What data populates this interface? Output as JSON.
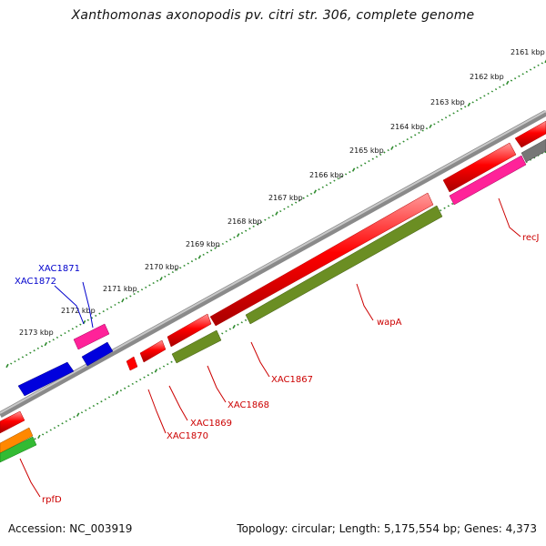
{
  "title": "Xanthomonas axonopodis pv. citri str. 306, complete genome",
  "accession": "Accession: NC_003919",
  "stats": "Topology: circular; Length: 5,175,554 bp; Genes: 4,373",
  "colors": {
    "backbone": "#7a7a7a",
    "tick": "#2e8b2e",
    "red": "#ff0000",
    "pink": "#ff2299",
    "olive": "#6b8e23",
    "blue": "#0000dd",
    "orange": "#ff8800",
    "green": "#33bb33",
    "gray": "#777777",
    "label_red": "#cc0000",
    "label_blue": "#0000cc"
  },
  "scale_labels": [
    "2161 kbp",
    "2162 kbp",
    "2163 kbp",
    "2164 kbp",
    "2165 kbp",
    "2166 kbp",
    "2167 kbp",
    "2168 kbp",
    "2169 kbp",
    "2170 kbp",
    "2171 kbp",
    "2172 kbp",
    "2173 kbp"
  ],
  "gene_labels": {
    "recJ": "recJ",
    "wapA": "wapA",
    "xac1867": "XAC1867",
    "xac1868": "XAC1868",
    "xac1869": "XAC1869",
    "xac1870": "XAC1870",
    "xac1871": "XAC1871",
    "xac1872": "XAC1872",
    "rpfD": "rpfD"
  }
}
